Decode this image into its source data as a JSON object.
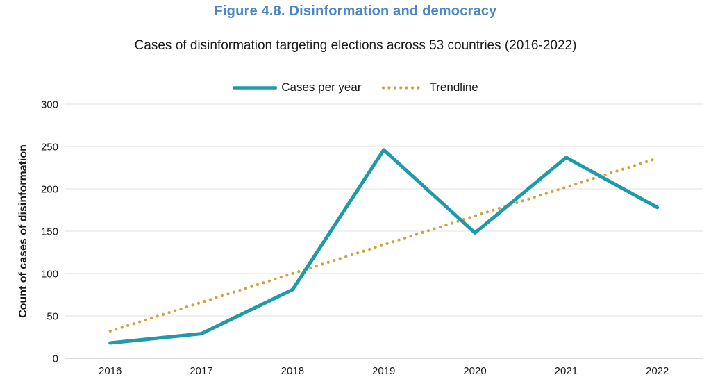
{
  "header": {
    "figure_title": "Figure 4.8. Disinformation and democracy"
  },
  "chart_data": {
    "type": "line",
    "title": "Cases of disinformation targeting elections across 53 countries (2016-2022)",
    "categories": [
      "2016",
      "2017",
      "2018",
      "2019",
      "2020",
      "2021",
      "2022"
    ],
    "series": [
      {
        "name": "Cases per year",
        "style": "solid",
        "color": "#1f9aa9",
        "values": [
          18,
          29,
          81,
          246,
          148,
          237,
          178
        ]
      },
      {
        "name": "Trendline",
        "style": "dotted",
        "color": "#cfa43e",
        "values": [
          32,
          66,
          100,
          134,
          168,
          202,
          236
        ]
      }
    ],
    "xlabel": "",
    "ylabel": "Count of cases of disinformation",
    "ylim": [
      0,
      300
    ],
    "yticks": [
      0,
      50,
      100,
      150,
      200,
      250,
      300
    ],
    "grid": true,
    "legend_position": "top"
  },
  "colors": {
    "figure_title_blue": "#4b86c4",
    "gridline": "#e2e2e2",
    "axis_line": "#c4c4c4",
    "text": "#1a1a1a",
    "background": "#ffffff"
  }
}
